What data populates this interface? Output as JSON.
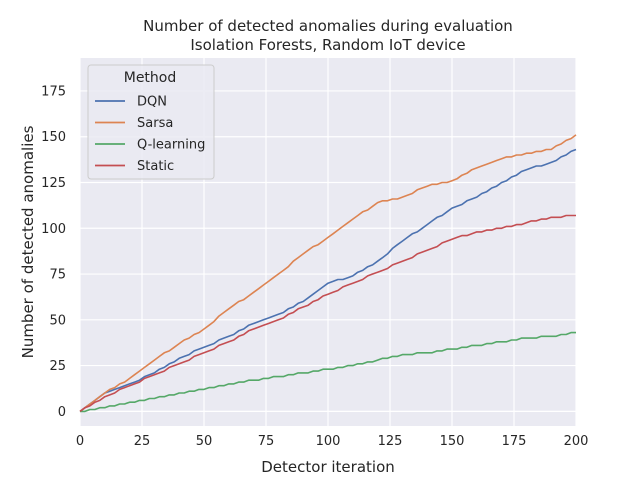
{
  "chart_data": {
    "type": "line",
    "title": "Number of detected anomalies during evaluation",
    "subtitle": "Isolation Forests, Random IoT device",
    "xlabel": "Detector iteration",
    "ylabel": "Number of detected anomalies",
    "xlim": [
      0,
      200
    ],
    "ylim": [
      -8,
      193
    ],
    "xticks": [
      0,
      25,
      50,
      75,
      100,
      125,
      150,
      175,
      200
    ],
    "yticks": [
      0,
      25,
      50,
      75,
      100,
      125,
      150,
      175
    ],
    "grid": true,
    "legend": {
      "title": "Method",
      "placement": "top-left"
    },
    "x": [
      0,
      10,
      20,
      30,
      40,
      50,
      60,
      70,
      80,
      90,
      100,
      110,
      120,
      130,
      140,
      150,
      160,
      170,
      180,
      190,
      200
    ],
    "series": [
      {
        "name": "DQN",
        "color": "#4c72b0",
        "values": [
          0,
          10,
          15,
          21,
          29,
          35,
          41,
          48,
          53,
          60,
          70,
          74,
          82,
          93,
          102,
          111,
          117,
          125,
          132,
          136,
          143
        ]
      },
      {
        "name": "Sarsa",
        "color": "#dd8452",
        "values": [
          0,
          10,
          18,
          28,
          37,
          45,
          56,
          65,
          75,
          86,
          95,
          105,
          114,
          117,
          123,
          126,
          133,
          138,
          141,
          143,
          151
        ]
      },
      {
        "name": "Q-learning",
        "color": "#55a868",
        "values": [
          0,
          2,
          5,
          7,
          10,
          12,
          15,
          17,
          19,
          21,
          23,
          25,
          28,
          31,
          32,
          34,
          36,
          38,
          40,
          41,
          43
        ]
      },
      {
        "name": "Static",
        "color": "#c44e52",
        "values": [
          0,
          8,
          14,
          20,
          26,
          32,
          38,
          45,
          50,
          57,
          64,
          70,
          76,
          82,
          88,
          94,
          98,
          100,
          103,
          106,
          107
        ]
      }
    ]
  }
}
